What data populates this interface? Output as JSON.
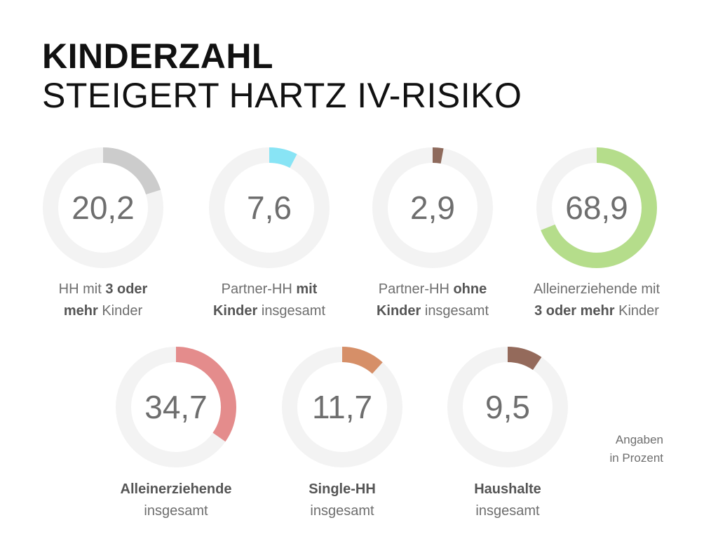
{
  "header": {
    "title_bold": "KINDERZAHL",
    "title_light": "STEIGERT HARTZ IV-RISIKO"
  },
  "note": {
    "line1": "Angaben",
    "line2": "in Prozent"
  },
  "chart_data": {
    "type": "donut",
    "unit": "Prozent",
    "track_color": "#f3f3f3",
    "items": [
      {
        "value": 20.2,
        "display": "20,2",
        "color": "#cccccc",
        "label_line1": [
          {
            "t": "HH mit ",
            "b": false
          },
          {
            "t": "3 oder",
            "b": true
          }
        ],
        "label_line2": [
          {
            "t": "mehr",
            "b": true
          },
          {
            "t": " Kinder",
            "b": false
          }
        ]
      },
      {
        "value": 7.6,
        "display": "7,6",
        "color": "#88e4f5",
        "label_line1": [
          {
            "t": "Partner-HH ",
            "b": false
          },
          {
            "t": "mit",
            "b": true
          }
        ],
        "label_line2": [
          {
            "t": "Kinder",
            "b": true
          },
          {
            "t": " insgesamt",
            "b": false
          }
        ]
      },
      {
        "value": 2.9,
        "display": "2,9",
        "color": "#8e6a5c",
        "label_line1": [
          {
            "t": "Partner-HH ",
            "b": false
          },
          {
            "t": "ohne",
            "b": true
          }
        ],
        "label_line2": [
          {
            "t": "Kinder",
            "b": true
          },
          {
            "t": " insgesamt",
            "b": false
          }
        ]
      },
      {
        "value": 68.9,
        "display": "68,9",
        "color": "#b5dd8b",
        "label_line1": [
          {
            "t": "Alleinerziehende mit",
            "b": false
          }
        ],
        "label_line2": [
          {
            "t": "3 oder mehr",
            "b": true
          },
          {
            "t": " Kinder",
            "b": false
          }
        ]
      },
      {
        "value": 34.7,
        "display": "34,7",
        "color": "#e48c8c",
        "label_line1": [
          {
            "t": "Alleinerziehende",
            "b": true
          }
        ],
        "label_line2": [
          {
            "t": "insgesamt",
            "b": false
          }
        ]
      },
      {
        "value": 11.7,
        "display": "11,7",
        "color": "#d68f68",
        "label_line1": [
          {
            "t": "Single-HH",
            "b": true
          }
        ],
        "label_line2": [
          {
            "t": "insgesamt",
            "b": false
          }
        ]
      },
      {
        "value": 9.5,
        "display": "9,5",
        "color": "#946a5b",
        "label_line1": [
          {
            "t": "Haushalte",
            "b": true
          }
        ],
        "label_line2": [
          {
            "t": "insgesamt",
            "b": false
          }
        ]
      }
    ]
  }
}
